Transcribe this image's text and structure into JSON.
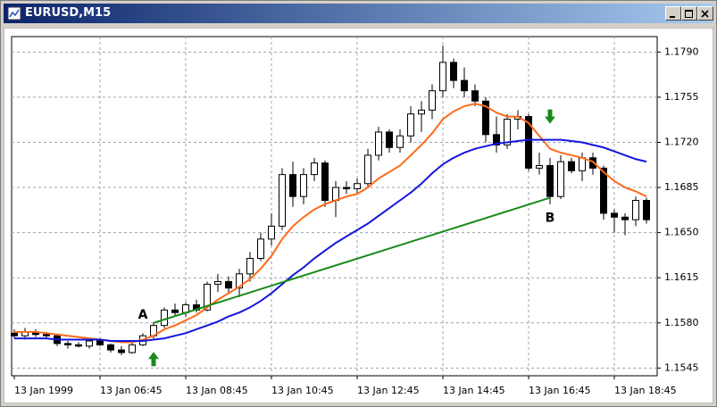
{
  "window": {
    "title": "EURUSD,M15"
  },
  "chart_data": {
    "type": "candlestick",
    "categories": [
      "13 Jan 1999",
      null,
      null,
      null,
      null,
      null,
      null,
      null,
      "13 Jan 06:45",
      null,
      null,
      null,
      null,
      null,
      null,
      null,
      "13 Jan 08:45",
      null,
      null,
      null,
      null,
      null,
      null,
      null,
      "13 Jan 10:45",
      null,
      null,
      null,
      null,
      null,
      null,
      null,
      "13 Jan 12:45",
      null,
      null,
      null,
      null,
      null,
      null,
      null,
      "13 Jan 14:45",
      null,
      null,
      null,
      null,
      null,
      null,
      null,
      "13 Jan 16:45",
      null,
      null,
      null,
      null,
      null,
      null,
      null,
      "13 Jan 18:45",
      null,
      null,
      null
    ],
    "open": [
      1.1572,
      1.157,
      1.1573,
      1.1571,
      1.157,
      1.1564,
      1.1563,
      1.1562,
      1.1566,
      1.1563,
      1.1559,
      1.1557,
      1.1563,
      1.157,
      1.1578,
      1.159,
      1.1588,
      1.1594,
      1.159,
      1.161,
      1.1612,
      1.1607,
      1.1618,
      1.163,
      1.1645,
      1.1655,
      1.1695,
      1.1678,
      1.1695,
      1.1704,
      1.1675,
      1.1685,
      1.1684,
      1.1688,
      1.171,
      1.1728,
      1.1716,
      1.1725,
      1.1742,
      1.1745,
      1.176,
      1.1782,
      1.1768,
      1.176,
      1.1752,
      1.1726,
      1.1718,
      1.1738,
      1.174,
      1.17,
      1.1702,
      1.1678,
      1.1705,
      1.1698,
      1.1708,
      1.17,
      1.1665,
      1.1662,
      1.166,
      1.1675
    ],
    "high": [
      1.1575,
      1.1576,
      1.1575,
      1.1573,
      1.1571,
      1.1566,
      1.1565,
      1.1567,
      1.1568,
      1.1564,
      1.1562,
      1.1565,
      1.1572,
      1.158,
      1.1592,
      1.1595,
      1.1596,
      1.1598,
      1.1612,
      1.1618,
      1.1616,
      1.1622,
      1.1635,
      1.165,
      1.1665,
      1.17,
      1.1705,
      1.17,
      1.1708,
      1.1706,
      1.169,
      1.169,
      1.1692,
      1.1715,
      1.1732,
      1.173,
      1.173,
      1.1748,
      1.1752,
      1.1765,
      1.1795,
      1.1785,
      1.1778,
      1.1765,
      1.1755,
      1.174,
      1.1742,
      1.1745,
      1.1742,
      1.1712,
      1.1708,
      1.171,
      1.1708,
      1.1712,
      1.1712,
      1.1702,
      1.1668,
      1.1665,
      1.1678,
      1.1677
    ],
    "low": [
      1.1568,
      1.1567,
      1.1569,
      1.1568,
      1.1562,
      1.156,
      1.1561,
      1.156,
      1.1562,
      1.1557,
      1.1555,
      1.1556,
      1.1562,
      1.1568,
      1.1576,
      1.1586,
      1.1585,
      1.1588,
      1.1589,
      1.1604,
      1.1603,
      1.16,
      1.1612,
      1.1628,
      1.164,
      1.1652,
      1.167,
      1.1672,
      1.169,
      1.167,
      1.1662,
      1.168,
      1.168,
      1.1685,
      1.1706,
      1.1712,
      1.1712,
      1.172,
      1.1728,
      1.1738,
      1.1755,
      1.1762,
      1.1755,
      1.1748,
      1.172,
      1.1712,
      1.1715,
      1.173,
      1.1698,
      1.1695,
      1.1672,
      1.1676,
      1.1696,
      1.169,
      1.1695,
      1.166,
      1.165,
      1.1648,
      1.1655,
      1.1657
    ],
    "close": [
      1.157,
      1.1573,
      1.1571,
      1.157,
      1.1564,
      1.1563,
      1.1562,
      1.1566,
      1.1563,
      1.1559,
      1.1557,
      1.1563,
      1.157,
      1.1578,
      1.159,
      1.1588,
      1.1594,
      1.159,
      1.161,
      1.1612,
      1.1607,
      1.1618,
      1.163,
      1.1645,
      1.1655,
      1.1695,
      1.1678,
      1.1695,
      1.1704,
      1.1675,
      1.1685,
      1.1684,
      1.1688,
      1.171,
      1.1728,
      1.1716,
      1.1725,
      1.1742,
      1.1745,
      1.176,
      1.1782,
      1.1768,
      1.176,
      1.1752,
      1.1726,
      1.1718,
      1.1738,
      1.174,
      1.17,
      1.1702,
      1.1678,
      1.1705,
      1.1698,
      1.1708,
      1.17,
      1.1665,
      1.1662,
      1.166,
      1.1675,
      1.166
    ],
    "up_color": "#ffffff",
    "down_color": "#000000",
    "series": [
      {
        "color": "#ff6a1a",
        "values": [
          1.1573,
          1.1573,
          1.1573,
          1.1572,
          1.1571,
          1.157,
          1.1569,
          1.1568,
          1.1567,
          1.1566,
          1.1565,
          1.1565,
          1.1567,
          1.157,
          1.1575,
          1.1578,
          1.1582,
          1.1586,
          1.1592,
          1.1598,
          1.1603,
          1.1608,
          1.1614,
          1.1622,
          1.1632,
          1.1645,
          1.1655,
          1.1662,
          1.1668,
          1.1672,
          1.1675,
          1.1678,
          1.168,
          1.1685,
          1.1692,
          1.1697,
          1.1702,
          1.171,
          1.1718,
          1.1727,
          1.1738,
          1.1744,
          1.1748,
          1.175,
          1.1748,
          1.1743,
          1.174,
          1.174,
          1.1735,
          1.1725,
          1.1715,
          1.1712,
          1.171,
          1.1708,
          1.1705,
          1.1697,
          1.169,
          1.1685,
          1.1682,
          1.1678
        ]
      },
      {
        "color": "#1515e0",
        "values": [
          1.1568,
          1.1568,
          1.1568,
          1.1568,
          1.1567,
          1.1567,
          1.1567,
          1.1567,
          1.1567,
          1.1566,
          1.1566,
          1.1566,
          1.1566,
          1.1567,
          1.1568,
          1.157,
          1.1572,
          1.1575,
          1.1578,
          1.1581,
          1.1585,
          1.1588,
          1.1592,
          1.1597,
          1.1603,
          1.161,
          1.1617,
          1.1623,
          1.163,
          1.1636,
          1.1642,
          1.1647,
          1.1652,
          1.1657,
          1.1663,
          1.1669,
          1.1675,
          1.1681,
          1.1688,
          1.1696,
          1.1703,
          1.1708,
          1.1712,
          1.1715,
          1.1717,
          1.1719,
          1.172,
          1.1721,
          1.1722,
          1.1722,
          1.1722,
          1.1722,
          1.1721,
          1.172,
          1.1718,
          1.1716,
          1.1713,
          1.171,
          1.1707,
          1.1705
        ]
      }
    ],
    "trendline": {
      "x": [
        13,
        50
      ],
      "y": [
        1.158,
        1.1677
      ],
      "color": "#1a8a1a"
    },
    "annotations": [
      {
        "text": "A",
        "x": 12,
        "y": 1.1586
      },
      {
        "text": "B",
        "x": 50,
        "y": 1.1661
      }
    ],
    "signals": [
      {
        "x": 13,
        "y": 1.1552,
        "direction": "up",
        "color": "#1a8a1a"
      },
      {
        "x": 50,
        "y": 1.174,
        "direction": "down",
        "color": "#1a8a1a"
      }
    ],
    "ylim": [
      1.1539,
      1.1802
    ],
    "yticks": [
      {
        "value": 1.179,
        "label": "1.1790"
      },
      1.1755,
      {
        "value": 1.172,
        "label": "1.1720"
      },
      1.1685,
      {
        "value": 1.165,
        "label": "1.1650"
      },
      1.1615,
      {
        "value": 1.158,
        "label": "1.1580"
      },
      1.1545
    ],
    "grid": true
  }
}
